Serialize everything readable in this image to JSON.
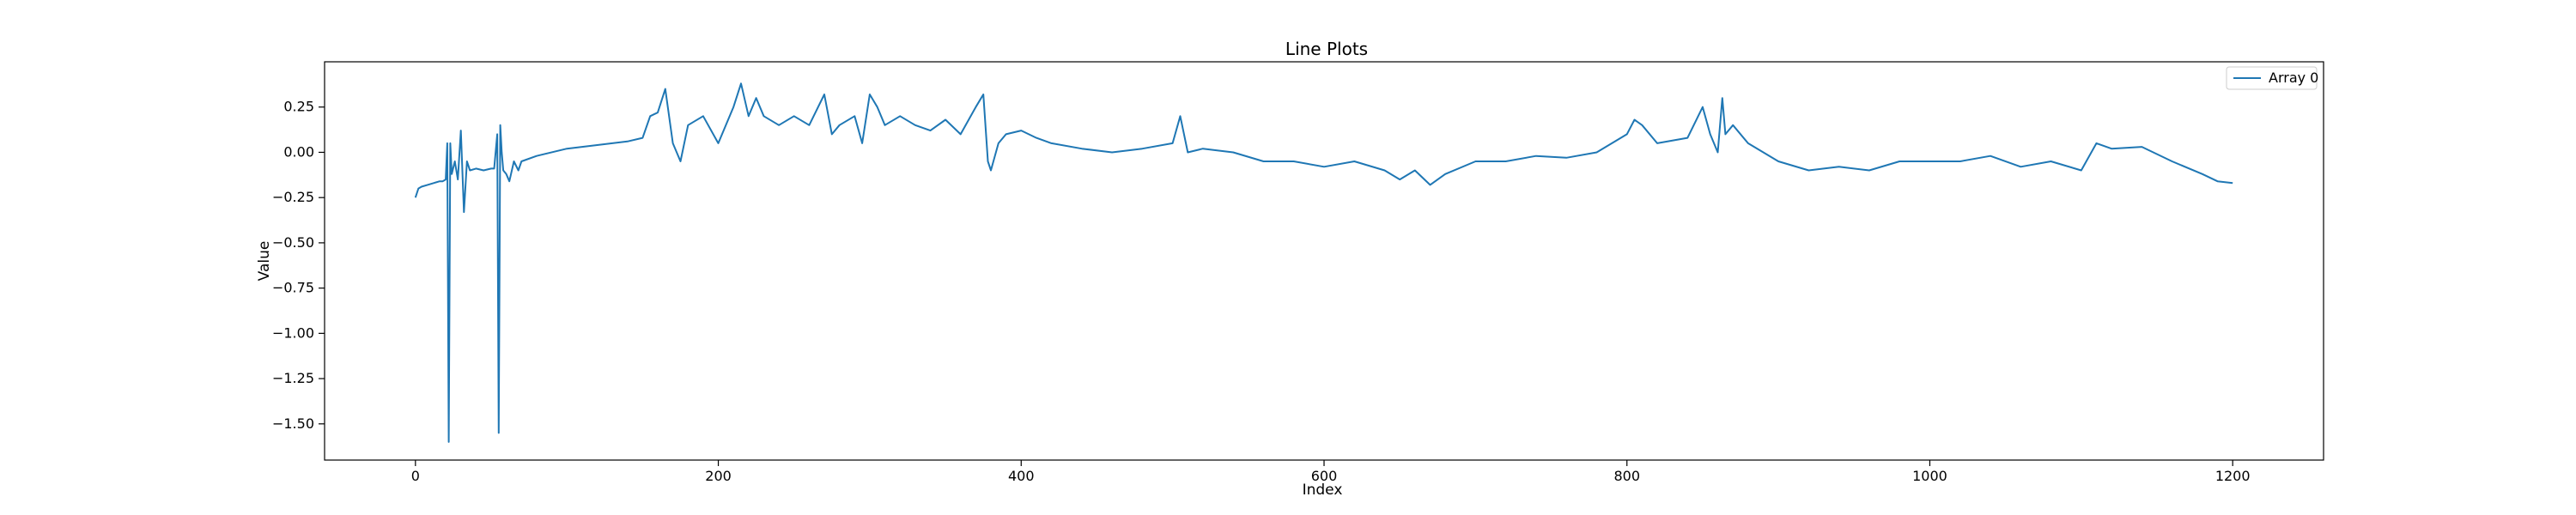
{
  "chart_data": {
    "type": "line",
    "title": "Line Plots",
    "xlabel": "Index",
    "ylabel": "Value",
    "xlim": [
      -60,
      1260
    ],
    "ylim": [
      -1.7,
      0.5
    ],
    "xticks": [
      0,
      200,
      400,
      600,
      800,
      1000,
      1200
    ],
    "yticks": [
      0.25,
      0.0,
      -0.25,
      -0.5,
      -0.75,
      -1.0,
      -1.25,
      -1.5
    ],
    "xtick_labels": [
      "0",
      "200",
      "400",
      "600",
      "800",
      "1000",
      "1200"
    ],
    "ytick_labels": [
      "0.25",
      "0.00",
      "−0.25",
      "−0.50",
      "−0.75",
      "−1.00",
      "−1.25",
      "−1.50"
    ],
    "grid": false,
    "legend_position": "top-right",
    "series": [
      {
        "name": "Array 0",
        "color": "#1f77b4",
        "x": [
          0,
          2,
          4,
          8,
          12,
          16,
          18,
          20,
          21,
          22,
          23,
          24,
          26,
          28,
          30,
          32,
          34,
          36,
          40,
          45,
          50,
          52,
          54,
          55,
          56,
          57,
          58,
          60,
          62,
          65,
          68,
          70,
          80,
          100,
          120,
          140,
          150,
          155,
          160,
          165,
          170,
          175,
          180,
          190,
          200,
          210,
          215,
          220,
          225,
          230,
          240,
          250,
          260,
          270,
          275,
          280,
          290,
          295,
          300,
          305,
          310,
          320,
          330,
          340,
          350,
          360,
          370,
          375,
          378,
          380,
          385,
          390,
          400,
          410,
          420,
          440,
          460,
          480,
          500,
          505,
          510,
          520,
          540,
          560,
          580,
          600,
          620,
          640,
          650,
          660,
          670,
          680,
          700,
          720,
          740,
          760,
          780,
          800,
          805,
          810,
          820,
          840,
          850,
          855,
          860,
          863,
          865,
          870,
          880,
          900,
          920,
          940,
          960,
          980,
          1000,
          1020,
          1040,
          1060,
          1080,
          1100,
          1110,
          1120,
          1140,
          1160,
          1180,
          1190,
          1200
        ],
        "values": [
          -0.25,
          -0.2,
          -0.19,
          -0.18,
          -0.17,
          -0.16,
          -0.16,
          -0.15,
          0.05,
          -1.6,
          0.05,
          -0.12,
          -0.05,
          -0.15,
          0.12,
          -0.33,
          -0.05,
          -0.1,
          -0.09,
          -0.1,
          -0.09,
          -0.09,
          0.1,
          -1.55,
          0.15,
          0.0,
          -0.1,
          -0.12,
          -0.16,
          -0.05,
          -0.1,
          -0.05,
          -0.02,
          0.02,
          0.04,
          0.06,
          0.08,
          0.2,
          0.22,
          0.35,
          0.05,
          -0.05,
          0.15,
          0.2,
          0.05,
          0.25,
          0.38,
          0.2,
          0.3,
          0.2,
          0.15,
          0.2,
          0.15,
          0.32,
          0.1,
          0.15,
          0.2,
          0.05,
          0.32,
          0.25,
          0.15,
          0.2,
          0.15,
          0.12,
          0.18,
          0.1,
          0.25,
          0.32,
          -0.05,
          -0.1,
          0.05,
          0.1,
          0.12,
          0.08,
          0.05,
          0.02,
          0.0,
          0.02,
          0.05,
          0.2,
          0.0,
          0.02,
          0.0,
          -0.05,
          -0.05,
          -0.08,
          -0.05,
          -0.1,
          -0.15,
          -0.1,
          -0.18,
          -0.12,
          -0.05,
          -0.05,
          -0.02,
          -0.03,
          0.0,
          0.1,
          0.18,
          0.15,
          0.05,
          0.08,
          0.25,
          0.1,
          0.0,
          0.3,
          0.1,
          0.15,
          0.05,
          -0.05,
          -0.1,
          -0.08,
          -0.1,
          -0.05,
          -0.05,
          -0.05,
          -0.02,
          -0.08,
          -0.05,
          -0.1,
          0.05,
          0.02,
          0.03,
          -0.05,
          -0.12,
          -0.16,
          -0.17
        ]
      }
    ]
  }
}
